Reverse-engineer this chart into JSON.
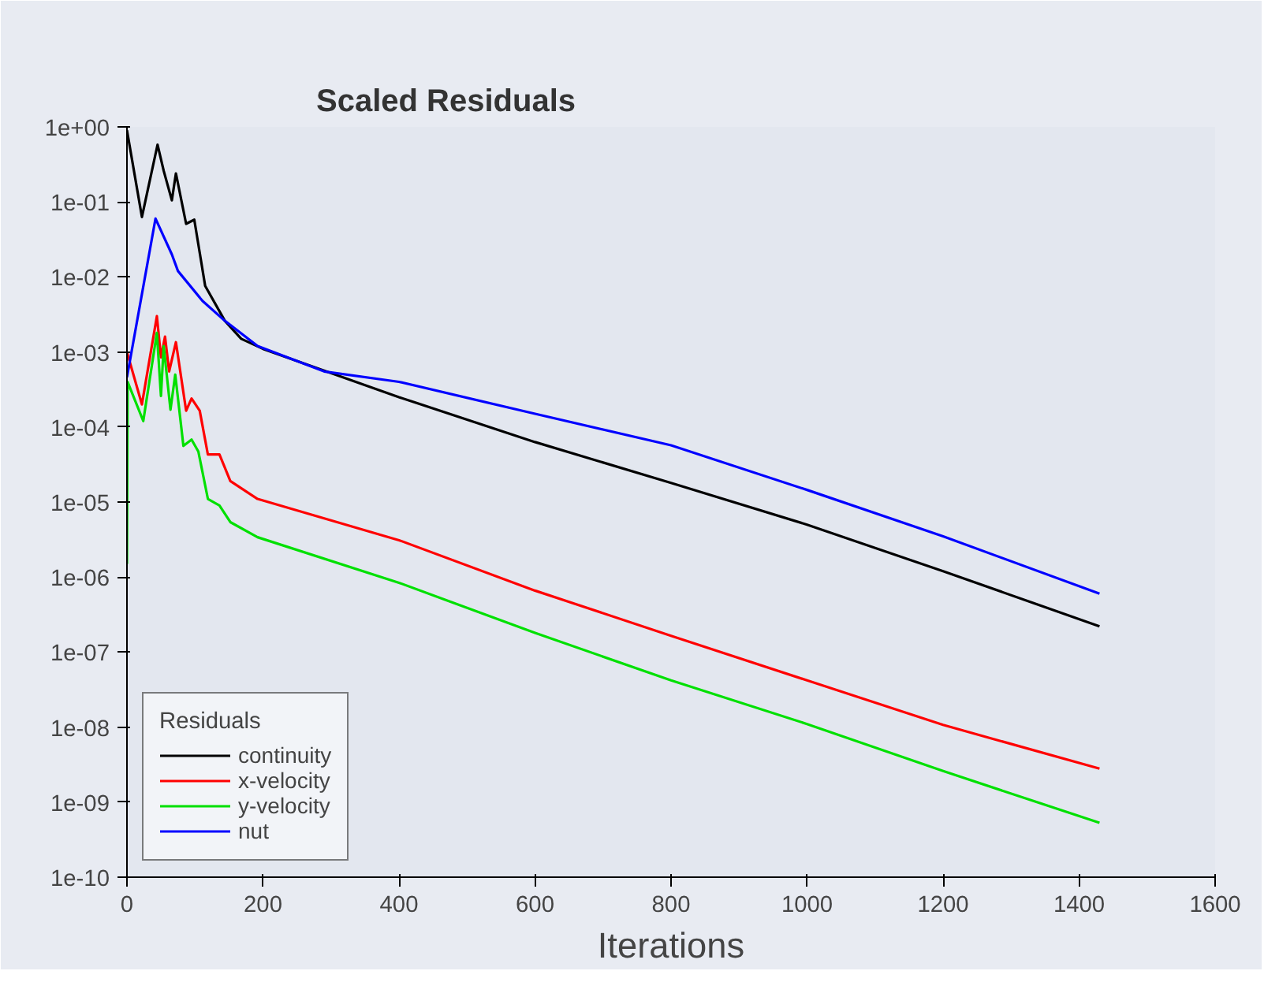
{
  "chart_data": {
    "type": "line",
    "title": "Scaled Residuals",
    "xlabel": "Iterations",
    "legend_title": "Residuals",
    "log": "y",
    "grid": false,
    "legend": "bottom left",
    "marker": "none",
    "line_style": "solid",
    "xlim": [
      0,
      1600
    ],
    "xticks": [
      0,
      200,
      400,
      600,
      800,
      1000,
      1200,
      1400,
      1600
    ],
    "ylim": [
      1e-10,
      1
    ],
    "yticks": [
      {
        "value": 1,
        "label": "1e+00"
      },
      {
        "value": 0.1,
        "label": "1e-01"
      },
      {
        "value": 0.01,
        "label": "1e-02"
      },
      {
        "value": 0.001,
        "label": "1e-03"
      },
      {
        "value": 0.0001,
        "label": "1e-04"
      },
      {
        "value": 1e-05,
        "label": "1e-05"
      },
      {
        "value": 1e-06,
        "label": "1e-06"
      },
      {
        "value": 1e-07,
        "label": "1e-07"
      },
      {
        "value": 1e-08,
        "label": "1e-08"
      },
      {
        "value": 1e-09,
        "label": "1e-09"
      },
      {
        "value": 1e-10,
        "label": "1e-10"
      }
    ],
    "series": [
      {
        "name": "continuity",
        "color": "#000000",
        "x": [
          0,
          22,
          45,
          54,
          66,
          72,
          87,
          99,
          115,
          144,
          168,
          200,
          400,
          600,
          800,
          1000,
          1200,
          1430
        ],
        "values": [
          0.9,
          0.063,
          0.58,
          0.26,
          0.105,
          0.24,
          0.051,
          0.058,
          0.0076,
          0.0026,
          0.0015,
          0.0011,
          0.00025,
          6.3e-05,
          1.8e-05,
          5e-06,
          1.2e-06,
          2.2e-07
        ]
      },
      {
        "name": "x-velocity",
        "color": "#ff0000",
        "x": [
          0,
          22,
          44,
          50,
          56,
          62,
          72,
          87,
          95,
          107,
          119,
          136,
          152,
          192,
          400,
          600,
          800,
          1000,
          1200,
          1430
        ],
        "values": [
          0.001,
          0.0002,
          0.003,
          0.00085,
          0.0016,
          0.00055,
          0.00135,
          0.000165,
          0.00024,
          0.000165,
          4.3e-05,
          4.3e-05,
          1.9e-05,
          1.1e-05,
          3.1e-06,
          6.6e-07,
          1.65e-07,
          4.2e-08,
          1.07e-08,
          2.8e-09
        ]
      },
      {
        "name": "y-velocity",
        "color": "#00e000",
        "x": [
          0,
          1,
          24,
          44,
          50,
          54,
          64,
          71,
          83,
          95,
          105,
          119,
          136,
          152,
          192,
          400,
          600,
          800,
          1000,
          1200,
          1430
        ],
        "values": [
          1.5e-06,
          0.0004,
          0.00012,
          0.0018,
          0.00026,
          0.0012,
          0.00017,
          0.0005,
          5.6e-05,
          6.8e-05,
          4.7e-05,
          1.1e-05,
          9e-06,
          5.4e-06,
          3.4e-06,
          8.4e-07,
          1.8e-07,
          4.2e-08,
          1.1e-08,
          2.6e-09,
          5.3e-10
        ]
      },
      {
        "name": "nut",
        "color": "#0000ff",
        "x": [
          0,
          42,
          66,
          75,
          111,
          144,
          192,
          290,
          400,
          600,
          800,
          1000,
          1200,
          1430
        ],
        "values": [
          0.00046,
          0.06,
          0.02,
          0.012,
          0.0048,
          0.0026,
          0.0012,
          0.00055,
          0.0004,
          0.00015,
          5.7e-05,
          1.45e-05,
          3.5e-06,
          6e-07
        ]
      }
    ]
  }
}
